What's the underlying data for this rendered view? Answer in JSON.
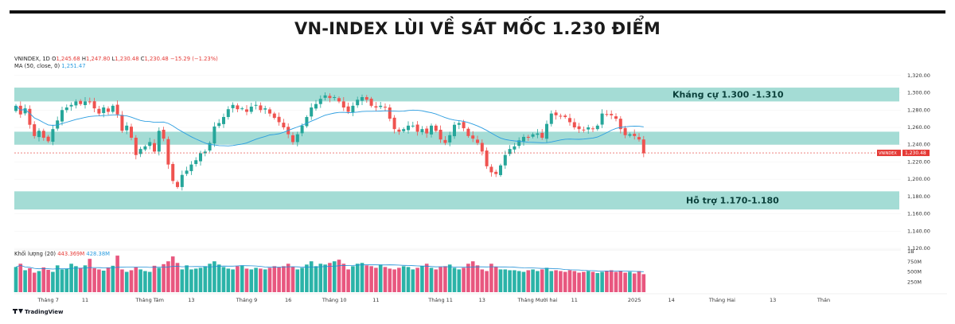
{
  "title": "VN-INDEX LÙI VỀ SÁT MỐC 1.230 ĐIỂM",
  "colors": {
    "up": "#26a69a",
    "down": "#ef5350",
    "zone": "#a4dcd5",
    "ma": "#2b9de0",
    "last": "#e53935",
    "vol_up": "#2bb3a8",
    "vol_down": "#e8577f"
  },
  "chart_data": {
    "type": "candlestick",
    "symbol": "VNINDEX",
    "interval": "1D",
    "ohlc_label": {
      "o": "O",
      "o_val": "1,245.68",
      "h": "H",
      "h_val": "1,247.80",
      "l": "L",
      "l_val": "1,230.48",
      "c": "C",
      "c_val": "1,230.48",
      "chg": "−15.29 (−1.23%)"
    },
    "ma_label": "MA (50, close, 0)",
    "ma_value": "1,251.47",
    "volume_label": "Khối lượng (20)",
    "volume_value": "443.369M",
    "volume_ma_value": "428.38M",
    "last_price": {
      "symbol_tag": "VNINDEX",
      "value": "1,230.48"
    },
    "ylim": [
      1120,
      1330
    ],
    "y_ticks": [
      "1,320.00",
      "1,300.00",
      "1,280.00",
      "1,260.00",
      "1,240.00",
      "1,220.00",
      "1,200.00",
      "1,180.00",
      "1,160.00",
      "1,140.00",
      "1,120.00"
    ],
    "vol_ticks": [
      "1B",
      "750M",
      "500M",
      "250M"
    ],
    "zones": [
      {
        "label": "Kháng cự 1.300 -1.310",
        "low": 1290,
        "high": 1306
      },
      {
        "label": "",
        "low": 1240,
        "high": 1255
      },
      {
        "label": "Hỗ trợ 1.170-1.180",
        "low": 1165,
        "high": 1186
      }
    ],
    "x_labels": [
      {
        "text": "Tháng 7",
        "i": 7
      },
      {
        "text": "11",
        "i": 15
      },
      {
        "text": "Tháng Tám",
        "i": 29
      },
      {
        "text": "13",
        "i": 38
      },
      {
        "text": "Tháng 9",
        "i": 50
      },
      {
        "text": "16",
        "i": 59
      },
      {
        "text": "Tháng 10",
        "i": 69
      },
      {
        "text": "11",
        "i": 78
      },
      {
        "text": "Tháng 11",
        "i": 92
      },
      {
        "text": "13",
        "i": 101
      },
      {
        "text": "Tháng Mười hai",
        "i": 113
      },
      {
        "text": "11",
        "i": 121
      },
      {
        "text": "2025",
        "i": 134
      },
      {
        "text": "14",
        "i": 142
      },
      {
        "text": "Tháng Hai",
        "i": 153
      },
      {
        "text": "13",
        "i": 164
      },
      {
        "text": "Thán",
        "i": 175
      }
    ],
    "close": [
      1285,
      1275,
      1282,
      1263,
      1250,
      1256,
      1248,
      1244,
      1258,
      1268,
      1280,
      1283,
      1286,
      1290,
      1287,
      1290,
      1289,
      1282,
      1276,
      1283,
      1278,
      1285,
      1275,
      1256,
      1262,
      1248,
      1228,
      1235,
      1238,
      1243,
      1232,
      1256,
      1247,
      1217,
      1198,
      1191,
      1205,
      1210,
      1217,
      1222,
      1230,
      1232,
      1242,
      1261,
      1265,
      1272,
      1281,
      1286,
      1281,
      1282,
      1278,
      1284,
      1286,
      1280,
      1282,
      1276,
      1271,
      1266,
      1260,
      1252,
      1243,
      1252,
      1262,
      1272,
      1283,
      1287,
      1293,
      1297,
      1294,
      1295,
      1290,
      1283,
      1278,
      1285,
      1292,
      1295,
      1292,
      1285,
      1283,
      1285,
      1283,
      1270,
      1258,
      1255,
      1258,
      1262,
      1262,
      1255,
      1258,
      1253,
      1262,
      1256,
      1246,
      1242,
      1251,
      1263,
      1265,
      1259,
      1250,
      1247,
      1242,
      1232,
      1215,
      1208,
      1206,
      1216,
      1228,
      1235,
      1238,
      1245,
      1249,
      1248,
      1252,
      1253,
      1248,
      1264,
      1276,
      1274,
      1273,
      1272,
      1266,
      1260,
      1258,
      1257,
      1260,
      1258,
      1262,
      1276,
      1275,
      1274,
      1270,
      1258,
      1251,
      1252,
      1250,
      1246,
      1230
    ],
    "volume": [
      620,
      700,
      540,
      590,
      480,
      520,
      610,
      550,
      500,
      660,
      560,
      580,
      700,
      640,
      600,
      660,
      820,
      590,
      560,
      530,
      610,
      650,
      900,
      560,
      500,
      540,
      620,
      560,
      520,
      500,
      650,
      600,
      690,
      760,
      880,
      720,
      560,
      660,
      560,
      580,
      600,
      640,
      700,
      760,
      680,
      620,
      580,
      560,
      640,
      660,
      580,
      560,
      600,
      580,
      560,
      600,
      640,
      620,
      640,
      700,
      620,
      560,
      600,
      680,
      760,
      640,
      700,
      680,
      720,
      760,
      800,
      700,
      560,
      640,
      700,
      720,
      660,
      640,
      600,
      680,
      620,
      580,
      560,
      600,
      640,
      620,
      560,
      600,
      640,
      700,
      600,
      560,
      620,
      640,
      680,
      600,
      560,
      600,
      700,
      760,
      660,
      560,
      520,
      700,
      620,
      560,
      560,
      540,
      540,
      520,
      500,
      540,
      560,
      520,
      560,
      600,
      520,
      540,
      520,
      500,
      540,
      520,
      480,
      500,
      520,
      500,
      470,
      500,
      520,
      540,
      500,
      520,
      480,
      500,
      460,
      520,
      443
    ]
  }
}
